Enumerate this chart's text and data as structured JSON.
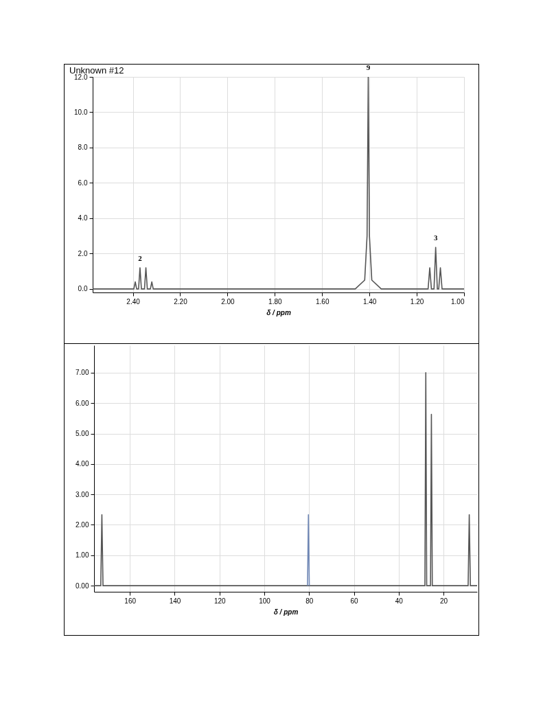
{
  "chart_data": [
    {
      "type": "line",
      "title": "Unknown #12",
      "xlabel": "δ / ppm",
      "xlim": [
        2.57,
        1.0
      ],
      "ylim": [
        -0.2,
        12
      ],
      "xticks": [
        {
          "value": 2.4,
          "label": "2.40"
        },
        {
          "value": 2.2,
          "label": "2.20"
        },
        {
          "value": 2.0,
          "label": "2.00"
        },
        {
          "value": 1.8,
          "label": "1.80"
        },
        {
          "value": 1.6,
          "label": "1.60"
        },
        {
          "value": 1.4,
          "label": "1.40"
        },
        {
          "value": 1.2,
          "label": "1.20"
        },
        {
          "value": 1.0,
          "label": "1.00"
        }
      ],
      "yticks": [
        {
          "value": 0,
          "label": "0.0"
        },
        {
          "value": 2,
          "label": "2.0"
        },
        {
          "value": 4,
          "label": "4.0"
        },
        {
          "value": 6,
          "label": "6.0"
        },
        {
          "value": 8,
          "label": "8.0"
        },
        {
          "value": 10,
          "label": "10.0"
        },
        {
          "value": 12,
          "label": "12.0"
        }
      ],
      "grid": true,
      "series": [
        {
          "color": "#555555",
          "x": [
            2.57,
            2.396,
            2.39,
            2.384,
            2.376,
            2.37,
            2.364,
            2.351,
            2.345,
            2.339,
            2.326,
            2.32,
            2.314,
            1.46,
            1.42,
            1.41,
            1.405,
            1.4,
            1.39,
            1.35,
            1.152,
            1.145,
            1.138,
            1.127,
            1.12,
            1.113,
            1.107,
            1.1,
            1.093,
            1.0
          ],
          "values": [
            0,
            0,
            0.4,
            0,
            0,
            1.2,
            0,
            0,
            1.2,
            0,
            0,
            0.4,
            0,
            0,
            0.5,
            3.0,
            12,
            3.0,
            0.5,
            0,
            0,
            1.2,
            0,
            0,
            2.35,
            0,
            0,
            1.2,
            0,
            0
          ]
        }
      ],
      "annotations": [
        {
          "text": "2",
          "x": 2.37,
          "y": 1.2
        },
        {
          "text": "9",
          "x": 1.405,
          "y": 12
        },
        {
          "text": "3",
          "x": 1.12,
          "y": 2.35
        }
      ]
    },
    {
      "type": "line",
      "xlabel": "δ / ppm",
      "xlim": [
        176,
        5
      ],
      "ylim": [
        -0.2,
        7.9
      ],
      "xticks": [
        160,
        140,
        120,
        100,
        80,
        60,
        40,
        20
      ],
      "yticks": [
        {
          "value": 0,
          "label": "0.00"
        },
        {
          "value": 1,
          "label": "1.00"
        },
        {
          "value": 2,
          "label": "2.00"
        },
        {
          "value": 3,
          "label": "3.00"
        },
        {
          "value": 4,
          "label": "4.00"
        },
        {
          "value": 5,
          "label": "5.00"
        },
        {
          "value": 6,
          "label": "6.00"
        },
        {
          "value": 7,
          "label": "7.00"
        }
      ],
      "grid": true,
      "series": [
        {
          "color": "#555555",
          "x": [
            176,
            173,
            172.5,
            172,
            28.3,
            27.9,
            27.5,
            25.8,
            25.4,
            25.0,
            9,
            8.5,
            8,
            5
          ],
          "values": [
            0,
            0,
            2.33,
            0,
            0,
            7.0,
            0,
            0,
            5.63,
            0,
            0,
            2.33,
            0,
            0
          ]
        },
        {
          "color": "#6f87b5",
          "x": [
            80.7,
            80.3,
            79.9
          ],
          "values": [
            0,
            2.33,
            0
          ]
        }
      ]
    }
  ]
}
